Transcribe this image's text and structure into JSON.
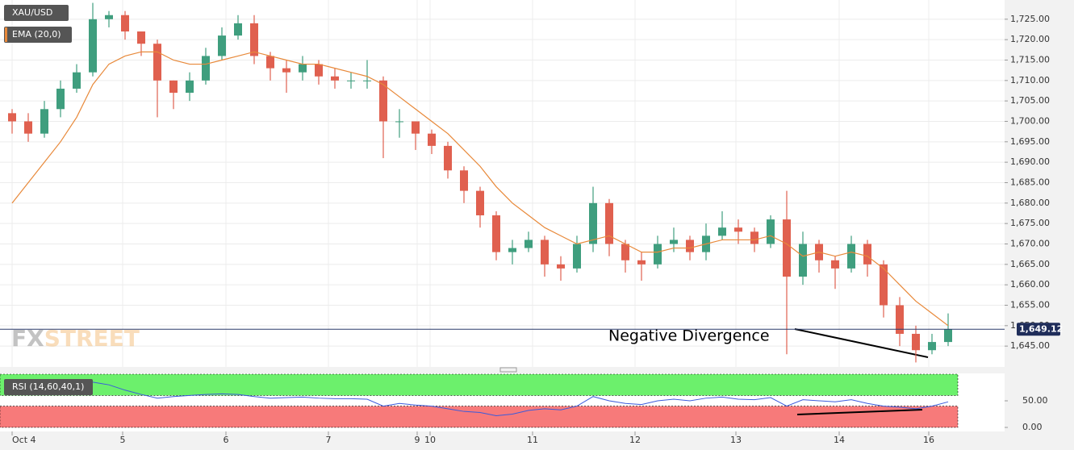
{
  "chart_data": [
    {
      "type": "candlestick",
      "title": "XAU/USD",
      "up_color": "#3f9e7e",
      "down_color": "#e0604f",
      "open": [
        1702,
        1700,
        1697,
        1703,
        1708,
        1712,
        1725,
        1726,
        1722,
        1719,
        1710,
        1707,
        1710,
        1716,
        1721,
        1724,
        1716,
        1713,
        1712,
        1714,
        1711,
        1710,
        1710,
        1710,
        1700,
        1700,
        1697,
        1694,
        1688,
        1683,
        1677,
        1668,
        1669,
        1671,
        1665,
        1664,
        1670,
        1680,
        1670,
        1666,
        1665,
        1670,
        1671,
        1668,
        1672,
        1674,
        1673,
        1670,
        1676,
        1662,
        1670,
        1666,
        1664,
        1670,
        1665,
        1655,
        1648,
        1644,
        1646
      ],
      "high": [
        1703,
        1702,
        1705,
        1710,
        1714,
        1729,
        1727,
        1727,
        1722,
        1720,
        1710,
        1712,
        1718,
        1723,
        1726,
        1726,
        1717,
        1715,
        1716,
        1715,
        1713,
        1712,
        1715,
        1711,
        1703,
        1700,
        1698,
        1695,
        1689,
        1684,
        1678,
        1671,
        1673,
        1672,
        1667,
        1672,
        1684,
        1681,
        1671,
        1668,
        1672,
        1674,
        1672,
        1675,
        1678,
        1676,
        1674,
        1677,
        1683,
        1673,
        1671,
        1667,
        1672,
        1671,
        1666,
        1657,
        1650,
        1648,
        1653
      ],
      "low": [
        1697,
        1695,
        1696,
        1701,
        1707,
        1711,
        1723,
        1720,
        1716,
        1701,
        1703,
        1705,
        1709,
        1715,
        1720,
        1714,
        1710,
        1707,
        1710,
        1709,
        1708,
        1708,
        1708,
        1691,
        1696,
        1693,
        1692,
        1686,
        1680,
        1674,
        1666,
        1665,
        1668,
        1662,
        1661,
        1663,
        1668,
        1667,
        1663,
        1661,
        1664,
        1668,
        1666,
        1666,
        1671,
        1670,
        1668,
        1669,
        1643,
        1660,
        1663,
        1659,
        1663,
        1662,
        1652,
        1645,
        1641,
        1643,
        1645
      ],
      "close": [
        1700,
        1697,
        1703,
        1708,
        1712,
        1725,
        1726,
        1722,
        1719,
        1710,
        1707,
        1710,
        1716,
        1721,
        1724,
        1716,
        1713,
        1712,
        1714,
        1711,
        1710,
        1710,
        1710,
        1700,
        1700,
        1697,
        1694,
        1688,
        1683,
        1677,
        1668,
        1669,
        1671,
        1665,
        1664,
        1670,
        1680,
        1670,
        1666,
        1665,
        1670,
        1671,
        1668,
        1672,
        1674,
        1673,
        1670,
        1676,
        1662,
        1670,
        1666,
        1664,
        1670,
        1665,
        1655,
        1648,
        1644,
        1646,
        1649.12
      ],
      "ema": {
        "name": "EMA (20,0)",
        "color": "#e8893a",
        "values": [
          1680,
          1685,
          1690,
          1695,
          1701,
          1709,
          1714,
          1716,
          1717,
          1717,
          1715,
          1714,
          1714,
          1715,
          1716,
          1717,
          1716,
          1715,
          1714,
          1714,
          1713,
          1712,
          1711,
          1709,
          1706,
          1703,
          1700,
          1697,
          1693,
          1689,
          1684,
          1680,
          1677,
          1674,
          1672,
          1670,
          1671,
          1672,
          1670,
          1668,
          1668,
          1669,
          1669,
          1670,
          1671,
          1671,
          1671,
          1672,
          1670,
          1667,
          1668,
          1667,
          1668,
          1667,
          1664,
          1660,
          1656,
          1653,
          1650
        ]
      },
      "last_price": {
        "value": 1649.12,
        "label": "1,649.12"
      },
      "annotation": "Negative Divergence",
      "watermark": [
        "FX",
        "STREET"
      ],
      "ylim": [
        1639.9,
        1729.7
      ],
      "yticks": [
        {
          "value": 1645,
          "label": "1,645.00"
        },
        {
          "value": 1650,
          "label": "1,650.00"
        },
        {
          "value": 1655,
          "label": "1,655.00"
        },
        {
          "value": 1660,
          "label": "1,660.00"
        },
        {
          "value": 1665,
          "label": "1,665.00"
        },
        {
          "value": 1670,
          "label": "1,670.00"
        },
        {
          "value": 1675,
          "label": "1,675.00"
        },
        {
          "value": 1680,
          "label": "1,680.00"
        },
        {
          "value": 1685,
          "label": "1,685.00"
        },
        {
          "value": 1690,
          "label": "1,690.00"
        },
        {
          "value": 1695,
          "label": "1,695.00"
        },
        {
          "value": 1700,
          "label": "1,700.00"
        },
        {
          "value": 1705,
          "label": "1,705.00"
        },
        {
          "value": 1710,
          "label": "1,710.00"
        },
        {
          "value": 1715,
          "label": "1,715.00"
        },
        {
          "value": 1720,
          "label": "1,720.00"
        },
        {
          "value": 1725,
          "label": "1,725.00"
        }
      ],
      "xlim": [
        -0.75,
        61.5
      ],
      "xticks": [
        {
          "value": 0,
          "label": "Oct 4"
        },
        {
          "value": 6.85,
          "label": "5"
        },
        {
          "value": 13.25,
          "label": "6"
        },
        {
          "value": 19.6,
          "label": "7"
        },
        {
          "value": 25.1,
          "label": "9"
        },
        {
          "value": 25.9,
          "label": "10"
        },
        {
          "value": 32.25,
          "label": "11"
        },
        {
          "value": 38.6,
          "label": "12"
        },
        {
          "value": 44.85,
          "label": "13"
        },
        {
          "value": 51.25,
          "label": "14"
        },
        {
          "value": 56.8,
          "label": "16"
        }
      ],
      "grid": true
    },
    {
      "type": "line",
      "series": [
        {
          "name": "RSI (14,60,40,1)",
          "color": "#3b5bdb",
          "values": [
            75,
            70,
            78,
            80,
            82,
            85,
            80,
            70,
            62,
            55,
            58,
            60,
            62,
            63,
            62,
            58,
            55,
            56,
            57,
            55,
            54,
            54,
            53,
            40,
            45,
            42,
            40,
            35,
            30,
            28,
            22,
            25,
            32,
            35,
            33,
            40,
            58,
            50,
            45,
            43,
            50,
            53,
            50,
            55,
            57,
            53,
            52,
            56,
            40,
            52,
            50,
            48,
            52,
            45,
            40,
            38,
            35,
            40,
            48
          ]
        }
      ],
      "zones": [
        {
          "from": 60,
          "to": 100,
          "color": "#6cf06c"
        },
        {
          "from": 0,
          "to": 40,
          "color": "#f77a7a"
        }
      ],
      "ylim": [
        -7.6,
        101.5
      ],
      "yticks": [
        {
          "value": 50,
          "label": "50.00"
        },
        {
          "value": 0,
          "label": "0.00"
        }
      ]
    }
  ]
}
